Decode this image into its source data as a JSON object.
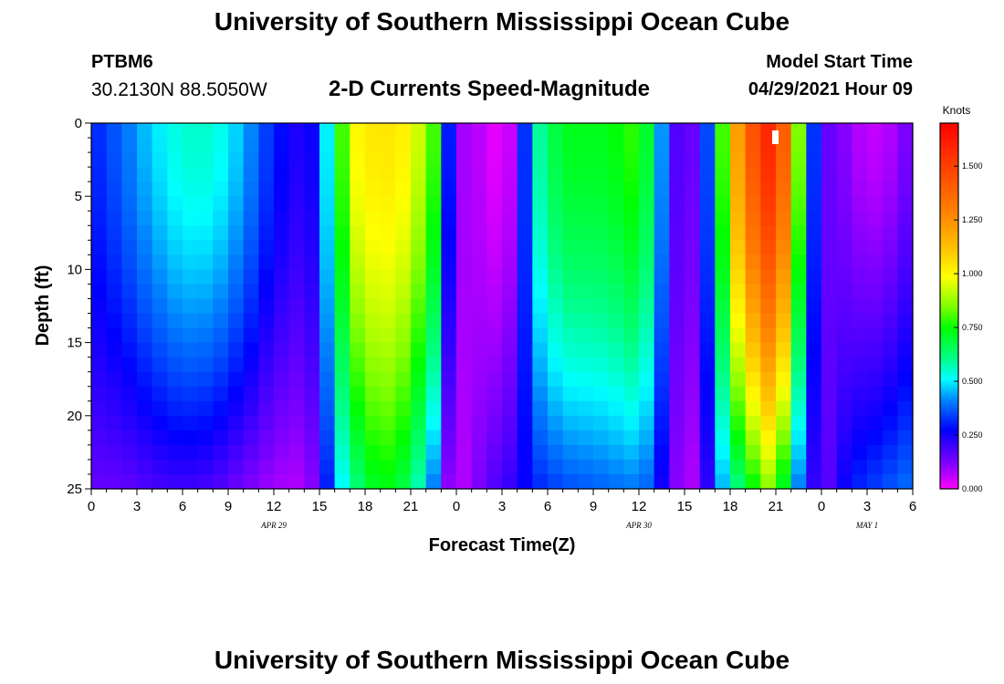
{
  "header": {
    "title": "University of Southern Mississippi Ocean Cube",
    "station_id": "PTBM6",
    "station_coords": "30.2130N  88.5050W",
    "plot_title": "2-D Currents Speed-Magnitude",
    "model_start_label": "Model Start Time",
    "model_start_value": "04/29/2021 Hour 09"
  },
  "footer": {
    "title": "University of Southern Mississippi Ocean Cube"
  },
  "chart_data": {
    "type": "heatmap",
    "title": "2-D Currents Speed-Magnitude",
    "xlabel": "Forecast Time(Z)",
    "ylabel": "Depth (ft)",
    "x_hours_range": [
      0,
      54
    ],
    "x_tick_hours": [
      0,
      3,
      6,
      9,
      12,
      15,
      18,
      21,
      24,
      27,
      30,
      33,
      36,
      39,
      42,
      45,
      48,
      51,
      54
    ],
    "x_tick_labels": [
      "0",
      "3",
      "6",
      "9",
      "12",
      "15",
      "18",
      "21",
      "0",
      "3",
      "6",
      "9",
      "12",
      "15",
      "18",
      "21",
      "0",
      "3",
      "6"
    ],
    "date_labels": [
      {
        "text": "APR 29",
        "hour": 12
      },
      {
        "text": "APR 30",
        "hour": 36
      },
      {
        "text": "MAY 1",
        "hour": 51
      }
    ],
    "ylim": [
      0,
      25
    ],
    "y_ticks": [
      0,
      5,
      10,
      15,
      20,
      25
    ],
    "colorbar": {
      "label": "Knots",
      "range": [
        0,
        1.7
      ],
      "ticks": [
        0.0,
        0.25,
        0.5,
        0.75,
        1.0,
        1.25,
        1.5
      ],
      "tick_labels": [
        "0.000",
        "0.250",
        "0.500",
        "0.750",
        "1.000",
        "1.250",
        "1.500"
      ]
    },
    "profiles": [
      {
        "hour": 0,
        "surface": 0.3,
        "bottom": 0.15
      },
      {
        "hour": 2,
        "surface": 0.38,
        "bottom": 0.15
      },
      {
        "hour": 4,
        "surface": 0.48,
        "bottom": 0.18
      },
      {
        "hour": 6,
        "surface": 0.55,
        "bottom": 0.2
      },
      {
        "hour": 8,
        "surface": 0.55,
        "bottom": 0.18
      },
      {
        "hour": 10,
        "surface": 0.45,
        "bottom": 0.13
      },
      {
        "hour": 12,
        "surface": 0.3,
        "bottom": 0.08
      },
      {
        "hour": 14,
        "surface": 0.22,
        "bottom": 0.07
      },
      {
        "hour": 15,
        "surface": 0.3,
        "bottom": 0.15
      },
      {
        "hour": 16,
        "surface": 0.7,
        "bottom": 0.45
      },
      {
        "hour": 17.5,
        "surface": 1.0,
        "bottom": 0.62
      },
      {
        "hour": 19,
        "surface": 1.05,
        "bottom": 0.75
      },
      {
        "hour": 21,
        "surface": 1.0,
        "bottom": 0.65
      },
      {
        "hour": 22.5,
        "surface": 0.8,
        "bottom": 0.4
      },
      {
        "hour": 23.5,
        "surface": 0.3,
        "bottom": 0.1
      },
      {
        "hour": 24,
        "surface": 0.1,
        "bottom": 0.05
      },
      {
        "hour": 26,
        "surface": 0.05,
        "bottom": 0.15
      },
      {
        "hour": 27,
        "surface": 0.0,
        "bottom": 0.2
      },
      {
        "hour": 28,
        "surface": 0.1,
        "bottom": 0.22
      },
      {
        "hour": 29,
        "surface": 0.55,
        "bottom": 0.3
      },
      {
        "hour": 31,
        "surface": 0.72,
        "bottom": 0.35
      },
      {
        "hour": 34,
        "surface": 0.72,
        "bottom": 0.38
      },
      {
        "hour": 36,
        "surface": 0.8,
        "bottom": 0.4
      },
      {
        "hour": 37,
        "surface": 0.6,
        "bottom": 0.35
      },
      {
        "hour": 38,
        "surface": 0.25,
        "bottom": 0.15
      },
      {
        "hour": 39,
        "surface": 0.1,
        "bottom": 0.07
      },
      {
        "hour": 40,
        "surface": 0.2,
        "bottom": 0.08
      },
      {
        "hour": 41,
        "surface": 0.5,
        "bottom": 0.35
      },
      {
        "hour": 42,
        "surface": 1.1,
        "bottom": 0.55
      },
      {
        "hour": 44,
        "surface": 1.55,
        "bottom": 0.8
      },
      {
        "hour": 45,
        "surface": 1.6,
        "bottom": 0.9
      },
      {
        "hour": 46,
        "surface": 1.2,
        "bottom": 0.5
      },
      {
        "hour": 47,
        "surface": 0.5,
        "bottom": 0.3
      },
      {
        "hour": 48,
        "surface": 0.15,
        "bottom": 0.12
      },
      {
        "hour": 49,
        "surface": 0.15,
        "bottom": 0.22
      },
      {
        "hour": 50,
        "surface": 0.08,
        "bottom": 0.3
      },
      {
        "hour": 52,
        "surface": 0.05,
        "bottom": 0.35
      },
      {
        "hour": 54,
        "surface": 0.15,
        "bottom": 0.4
      }
    ]
  }
}
